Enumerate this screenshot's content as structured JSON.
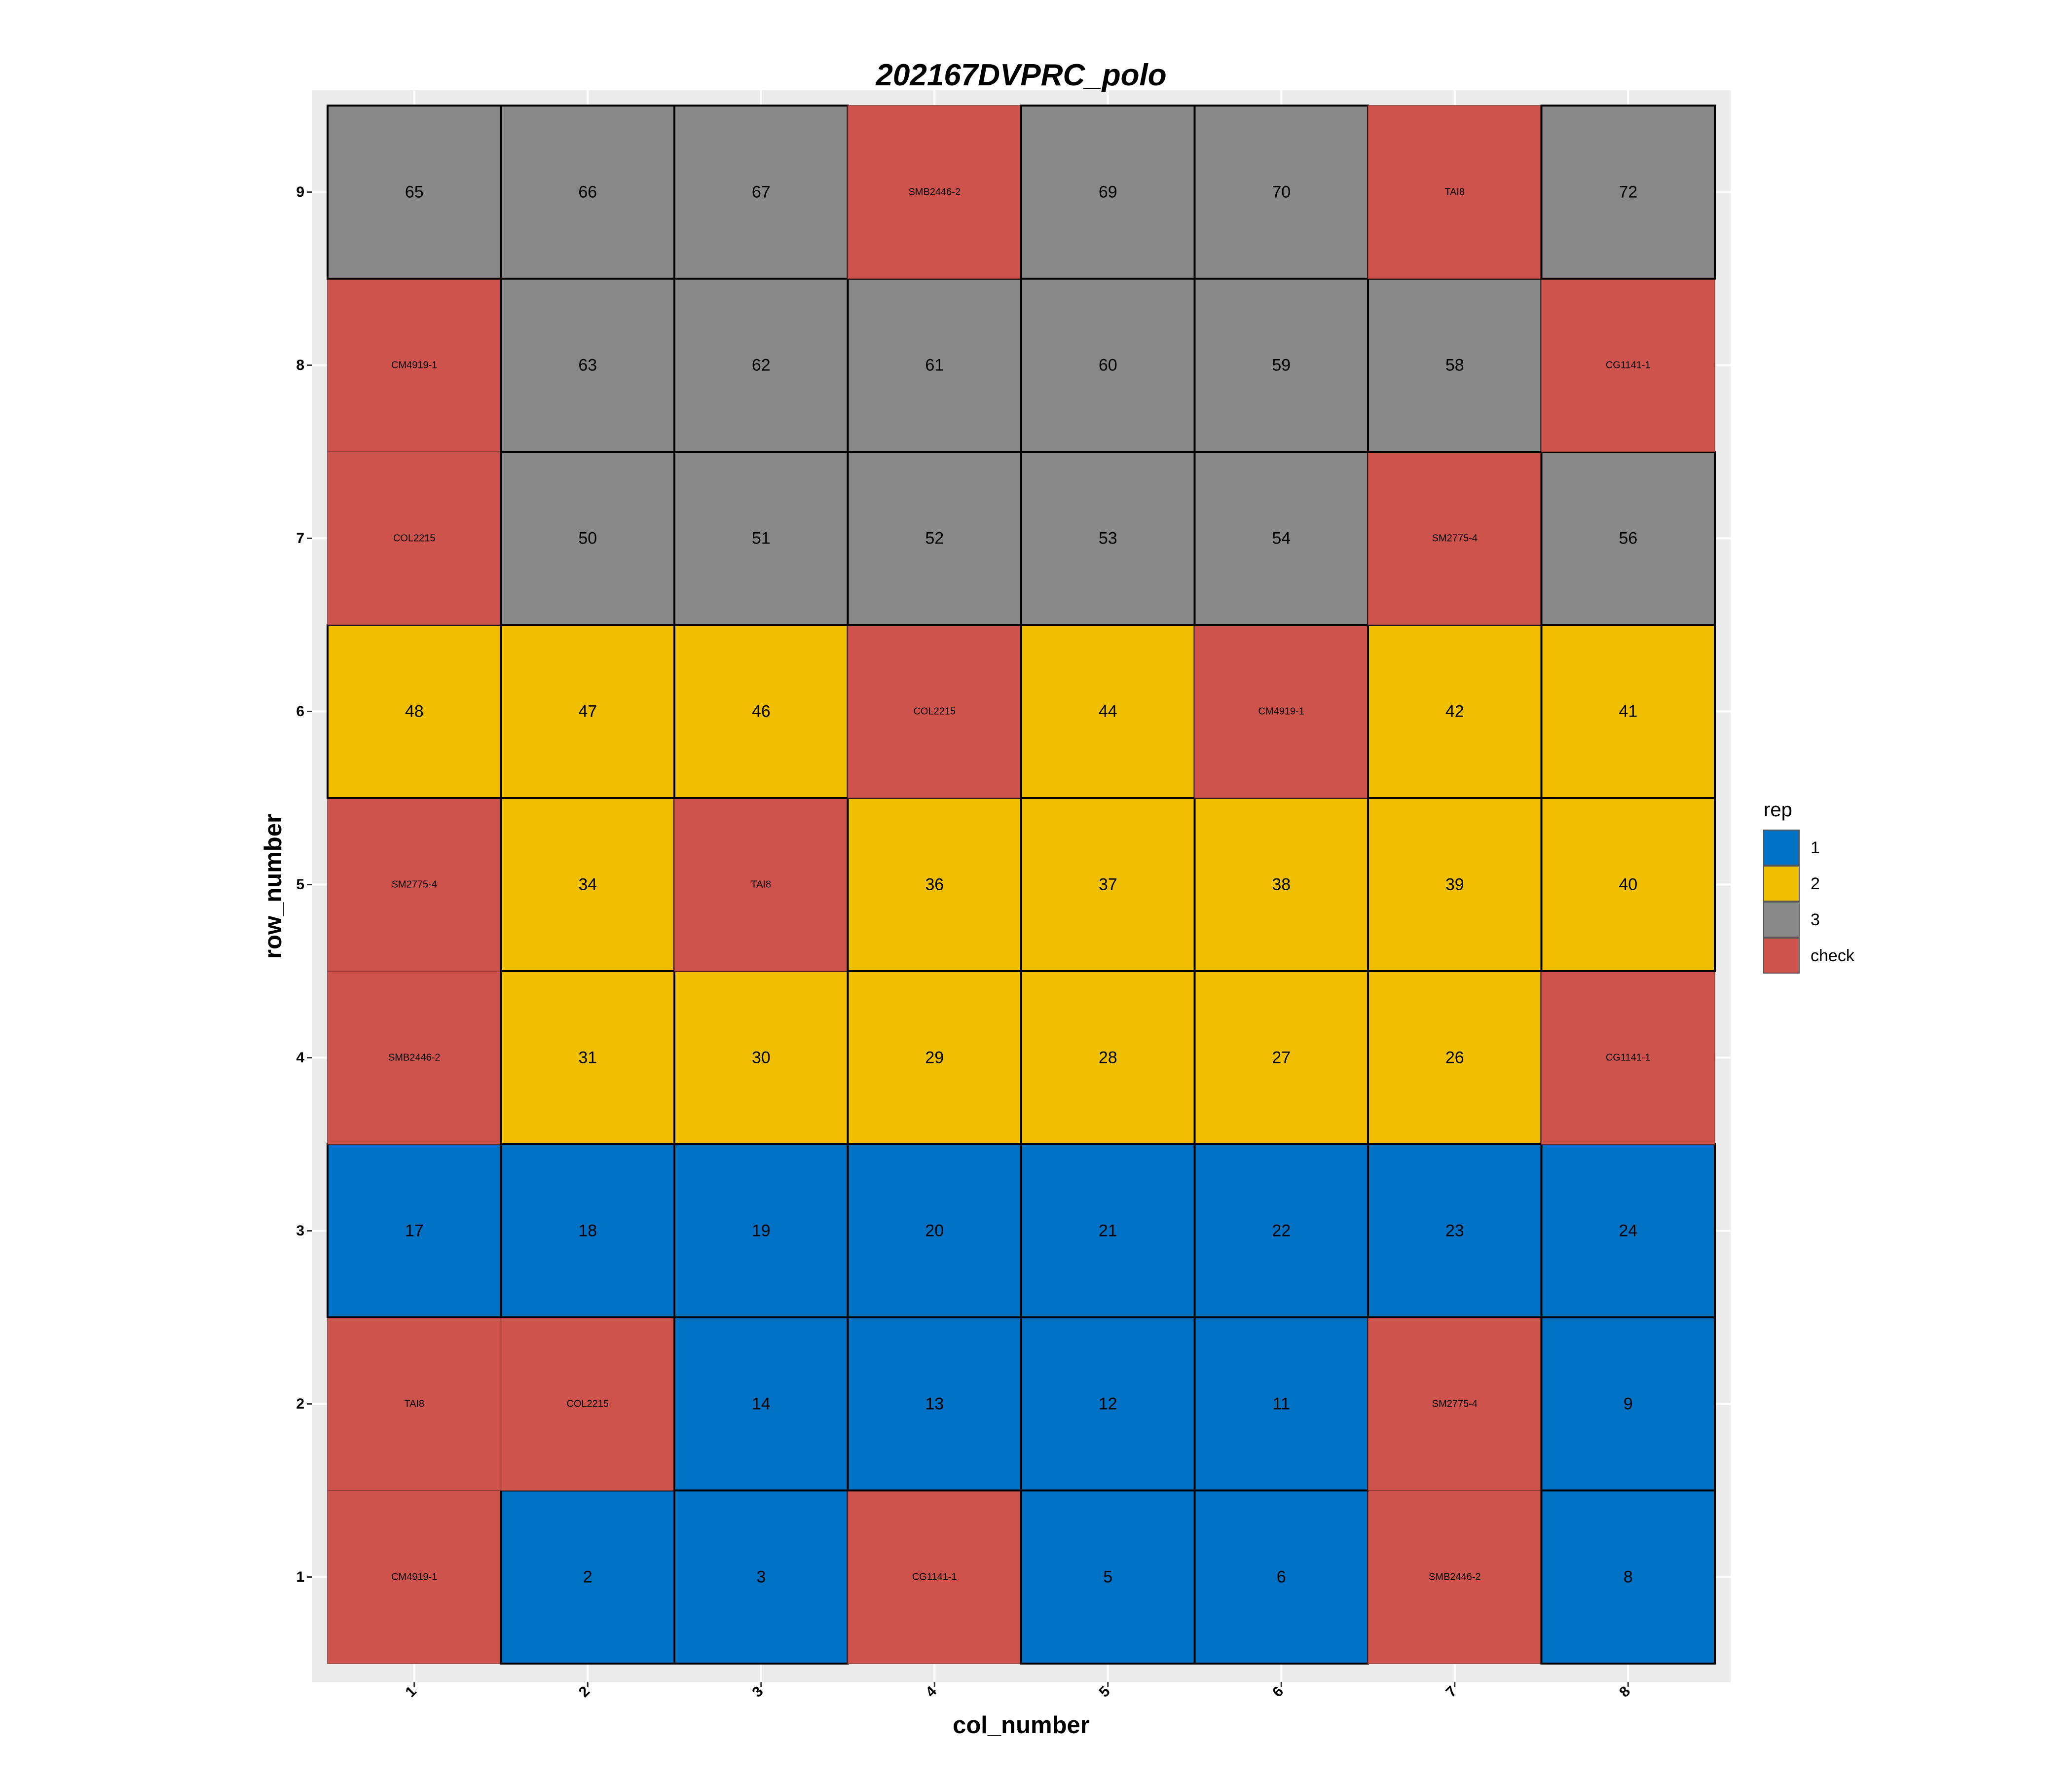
{
  "chart_data": {
    "type": "heatmap",
    "title": "202167DVPRC_polo",
    "xlabel": "col_number",
    "ylabel": "row_number",
    "x_ticks": [
      "1",
      "2",
      "3",
      "4",
      "5",
      "6",
      "7",
      "8"
    ],
    "y_ticks": [
      "1",
      "2",
      "3",
      "4",
      "5",
      "6",
      "7",
      "8",
      "9"
    ],
    "legend": {
      "title": "rep",
      "position": "right",
      "entries": [
        {
          "label": "1",
          "color": "#0072c6"
        },
        {
          "label": "2",
          "color": "#f0c000"
        },
        {
          "label": "3",
          "color": "#888888"
        },
        {
          "label": "check",
          "color": "#cf534d"
        }
      ]
    },
    "grid": true,
    "rows": [
      {
        "row": 1,
        "cells": [
          {
            "label": "CM4919-1",
            "rep": "check"
          },
          {
            "label": "2",
            "rep": "1"
          },
          {
            "label": "3",
            "rep": "1"
          },
          {
            "label": "CG1141-1",
            "rep": "check"
          },
          {
            "label": "5",
            "rep": "1"
          },
          {
            "label": "6",
            "rep": "1"
          },
          {
            "label": "SMB2446-2",
            "rep": "check"
          },
          {
            "label": "8",
            "rep": "1"
          }
        ]
      },
      {
        "row": 2,
        "cells": [
          {
            "label": "TAI8",
            "rep": "check"
          },
          {
            "label": "COL2215",
            "rep": "check"
          },
          {
            "label": "14",
            "rep": "1"
          },
          {
            "label": "13",
            "rep": "1"
          },
          {
            "label": "12",
            "rep": "1"
          },
          {
            "label": "11",
            "rep": "1"
          },
          {
            "label": "SM2775-4",
            "rep": "check"
          },
          {
            "label": "9",
            "rep": "1"
          }
        ]
      },
      {
        "row": 3,
        "cells": [
          {
            "label": "17",
            "rep": "1"
          },
          {
            "label": "18",
            "rep": "1"
          },
          {
            "label": "19",
            "rep": "1"
          },
          {
            "label": "20",
            "rep": "1"
          },
          {
            "label": "21",
            "rep": "1"
          },
          {
            "label": "22",
            "rep": "1"
          },
          {
            "label": "23",
            "rep": "1"
          },
          {
            "label": "24",
            "rep": "1"
          }
        ]
      },
      {
        "row": 4,
        "cells": [
          {
            "label": "SMB2446-2",
            "rep": "check"
          },
          {
            "label": "31",
            "rep": "2"
          },
          {
            "label": "30",
            "rep": "2"
          },
          {
            "label": "29",
            "rep": "2"
          },
          {
            "label": "28",
            "rep": "2"
          },
          {
            "label": "27",
            "rep": "2"
          },
          {
            "label": "26",
            "rep": "2"
          },
          {
            "label": "CG1141-1",
            "rep": "check"
          }
        ]
      },
      {
        "row": 5,
        "cells": [
          {
            "label": "SM2775-4",
            "rep": "check"
          },
          {
            "label": "34",
            "rep": "2"
          },
          {
            "label": "TAI8",
            "rep": "check"
          },
          {
            "label": "36",
            "rep": "2"
          },
          {
            "label": "37",
            "rep": "2"
          },
          {
            "label": "38",
            "rep": "2"
          },
          {
            "label": "39",
            "rep": "2"
          },
          {
            "label": "40",
            "rep": "2"
          }
        ]
      },
      {
        "row": 6,
        "cells": [
          {
            "label": "48",
            "rep": "2"
          },
          {
            "label": "47",
            "rep": "2"
          },
          {
            "label": "46",
            "rep": "2"
          },
          {
            "label": "COL2215",
            "rep": "check"
          },
          {
            "label": "44",
            "rep": "2"
          },
          {
            "label": "CM4919-1",
            "rep": "check"
          },
          {
            "label": "42",
            "rep": "2"
          },
          {
            "label": "41",
            "rep": "2"
          }
        ]
      },
      {
        "row": 7,
        "cells": [
          {
            "label": "COL2215",
            "rep": "check"
          },
          {
            "label": "50",
            "rep": "3"
          },
          {
            "label": "51",
            "rep": "3"
          },
          {
            "label": "52",
            "rep": "3"
          },
          {
            "label": "53",
            "rep": "3"
          },
          {
            "label": "54",
            "rep": "3"
          },
          {
            "label": "SM2775-4",
            "rep": "check"
          },
          {
            "label": "56",
            "rep": "3"
          }
        ]
      },
      {
        "row": 8,
        "cells": [
          {
            "label": "CM4919-1",
            "rep": "check"
          },
          {
            "label": "63",
            "rep": "3"
          },
          {
            "label": "62",
            "rep": "3"
          },
          {
            "label": "61",
            "rep": "3"
          },
          {
            "label": "60",
            "rep": "3"
          },
          {
            "label": "59",
            "rep": "3"
          },
          {
            "label": "58",
            "rep": "3"
          },
          {
            "label": "CG1141-1",
            "rep": "check"
          }
        ]
      },
      {
        "row": 9,
        "cells": [
          {
            "label": "65",
            "rep": "3"
          },
          {
            "label": "66",
            "rep": "3"
          },
          {
            "label": "67",
            "rep": "3"
          },
          {
            "label": "SMB2446-2",
            "rep": "check"
          },
          {
            "label": "69",
            "rep": "3"
          },
          {
            "label": "70",
            "rep": "3"
          },
          {
            "label": "TAI8",
            "rep": "check"
          },
          {
            "label": "72",
            "rep": "3"
          }
        ]
      }
    ]
  }
}
